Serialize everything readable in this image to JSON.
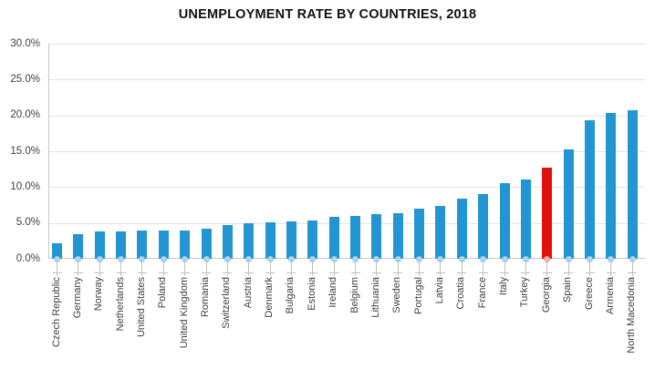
{
  "chart_data": {
    "type": "bar",
    "title": "UNEMPLOYMENT RATE BY COUNTRIES, 2018",
    "categories": [
      "Czech Republic",
      "Germany",
      "Norway",
      "Netherlands",
      "United States",
      "Poland",
      "United Kingdom",
      "Romania",
      "Switzerland",
      "Austria",
      "Denmark",
      "Bulgaria",
      "Estonia",
      "Ireland",
      "Belgium",
      "Lithuania",
      "Sweden",
      "Portugal",
      "Latvia",
      "Croatia",
      "France",
      "Italy",
      "Turkey",
      "Georgia",
      "Spain",
      "Greece",
      "Armenia",
      "North Macedonia"
    ],
    "values": [
      2.2,
      3.4,
      3.8,
      3.8,
      3.9,
      3.9,
      4.0,
      4.2,
      4.7,
      4.9,
      5.1,
      5.2,
      5.4,
      5.8,
      6.0,
      6.2,
      6.3,
      7.0,
      7.4,
      8.4,
      9.0,
      10.6,
      11.0,
      12.7,
      15.3,
      19.3,
      20.4,
      20.7
    ],
    "highlight_category": "Georgia",
    "xlabel": "",
    "ylabel": "",
    "ylim": [
      0,
      30
    ],
    "ytick_step": 5,
    "ytick_labels": [
      "0.0%",
      "5.0%",
      "10.0%",
      "15.0%",
      "20.0%",
      "25.0%",
      "30.0%"
    ],
    "grid": true,
    "legend": null,
    "colors": {
      "bar": "#2196d3",
      "bar_marker_fill": "#b5d8ee",
      "bar_marker_edge": "#9cc7e4",
      "highlight": "#e01310",
      "highlight_marker_fill": "#f3b7b3",
      "highlight_marker_edge": "#eba19c",
      "gridline": "#e3e3e3",
      "axis": "#c6c6c6",
      "tick": "#bfbfbf",
      "title": "#111111",
      "label": "#3f3f3f"
    }
  }
}
